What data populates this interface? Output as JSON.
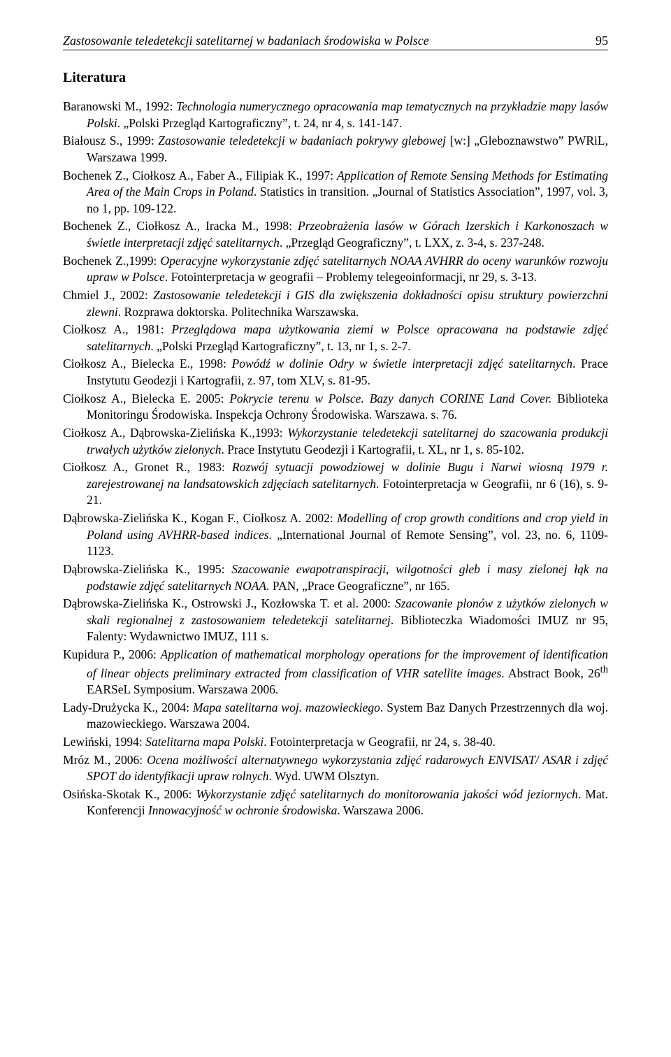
{
  "header": {
    "running_title": "Zastosowanie teledetekcji satelitarnej w badaniach środowiska w Polsce",
    "page_number": "95"
  },
  "section_heading": "Literatura",
  "refs": {
    "r0": "Baranowski M., 1992: <i>Technologia numerycznego opracowania map tematycznych na przykładzie mapy lasów Polski</i>. „Polski Przegląd Kartograficzny”, t. 24, nr 4, s. 141-147.",
    "r1": "Białousz S., 1999: <i>Zastosowanie teledetekcji w badaniach pokrywy glebowej</i> [w:] „Gleboznawstwo” PWRiL, Warszawa 1999.",
    "r2": "Bochenek Z., Ciołkosz A., Faber A., Filipiak K., 1997: <i>Application of Remote Sensing Methods for Estimating Area of the Main Crops in Poland</i>. Statistics in transition. „Journal of Statistics Association”, 1997, vol. 3, no 1, pp. 109-122.",
    "r3": "Bochenek Z., Ciołkosz A., Iracka M., 1998: <i>Przeobrażenia lasów w Górach Izerskich i Karkonoszach w świetle interpretacji zdjęć satelitarnych</i>. „Przegląd Geograficzny”, t. LXX, z. 3-4, s. 237-248.",
    "r4": "Bochenek Z.,1999: <i>Operacyjne wykorzystanie zdjęć satelitarnych NOAA AVHRR do oceny warunków rozwoju upraw w Polsce</i>. Fotointerpretacja w geografii – Problemy telegeoinformacji, nr 29, s. 3-13.",
    "r5": "Chmiel J., 2002: <i>Zastosowanie teledetekcji i GIS dla zwiększenia dokładności opisu struktury powierzchni zlewni</i>. Rozprawa doktorska. Politechnika Warszawska.",
    "r6": "Ciołkosz A., 1981: <i>Przeglądowa mapa użytkowania ziemi w Polsce opracowana na podstawie zdjęć satelitarnych</i>. „Polski Przegląd Kartograficzny”, t. 13, nr 1, s. 2-7.",
    "r7": "Ciołkosz A., Bielecka E., 1998: <i>Powódź w dolinie Odry w świetle interpretacji zdjęć satelitarnych</i>. Prace Instytutu Geodezji i Kartografii, z. 97, tom XLV, s. 81-95.",
    "r8": "Ciołkosz A., Bielecka E. 2005: <i>Pokrycie terenu w Polsce. Bazy danych CORINE Land Cover.</i> Biblioteka Monitoringu Środowiska. Inspekcja Ochrony Środowiska. Warszawa. s. 76.",
    "r9": "Ciołkosz A., Dąbrowska-Zielińska K.,1993: <i>Wykorzystanie teledetekcji satelitarnej do szacowania produkcji trwałych użytków zielonych</i>. Prace Instytutu Geodezji i Kartografii, t. XL, nr 1, s. 85-102.",
    "r10": "Ciołkosz A., Gronet R., 1983: <i>Rozwój sytuacji powodziowej w dolinie Bugu i Narwi wiosną 1979 r. zarejestrowanej na landsatowskich zdjęciach satelitarnych</i>. Fotointerpretacja w Geografii, nr 6 (16), s. 9-21.",
    "r11": "Dąbrowska-Zielińska K., Kogan F., Ciołkosz A. 2002: <i>Modelling of crop growth conditions and crop yield in Poland using AVHRR-based indices</i>. „International Journal of Remote Sensing”, vol. 23, no. 6, 1109-1123.",
    "r12": "Dąbrowska-Zielińska K., 1995: <i>Szacowanie ewapotranspiracji, wilgotności gleb i masy zielonej łąk na podstawie zdjęć satelitarnych NOAA</i>. PAN, „Prace Geograficzne”, nr 165.",
    "r13": "Dąbrowska-Zielińska K., Ostrowski J., Kozłowska T. et al. 2000: <i>Szacowanie plonów z użytków zielonych w skali regionalnej z zastosowaniem teledetekcji satelitarnej</i>. Biblioteczka Wiadomości IMUZ nr 95, Falenty: Wydawnictwo IMUZ, 111 s.",
    "r14": "Kupidura P., 2006: <i>Application of mathematical morphology operations for the improvement of identification of linear objects preliminary extracted from classification of VHR satellite images</i>. Abstract Book, 26<sup>th</sup> EARSeL Symposium. Warszawa 2006.",
    "r15": "Lady-Drużycka K., 2004: <i>Mapa satelitarna woj. mazowieckiego</i>. System Baz Danych Przestrzennych dla woj. mazowieckiego. Warszawa 2004.",
    "r16": "Lewiński, 1994: <i>Satelitarna mapa Polski</i>. Fotointerpretacja w Geografii, nr 24, s. 38-40.",
    "r17": "Mróz M., 2006: <i>Ocena możliwości alternatywnego wykorzystania zdjęć radarowych ENVISAT/ ASAR i zdjęć SPOT do identyfikacji upraw rolnych</i>. Wyd. UWM Olsztyn.",
    "r18": "Osińska-Skotak K., 2006: <i>Wykorzystanie zdjęć satelitarnych do monitorowania jakości wód jeziornych</i>. Mat. Konferencji <i>Innowacyjność w ochronie środowiska</i>. Warszawa 2006."
  }
}
